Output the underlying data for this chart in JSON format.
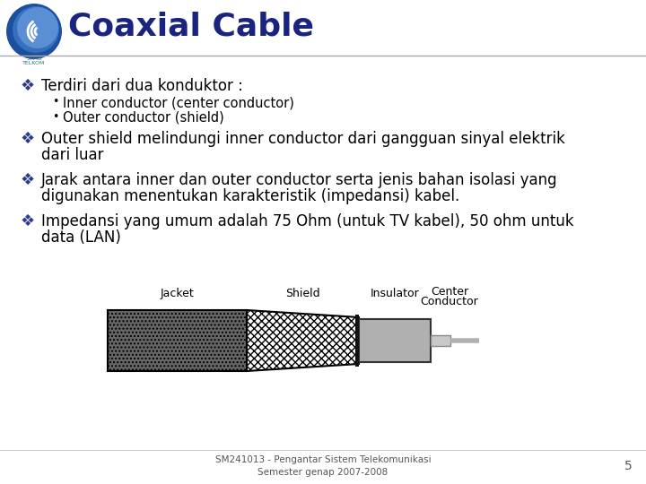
{
  "title": "Coaxial Cable",
  "title_color": "#1a237e",
  "bg_color": "#ffffff",
  "bullet_sym": "❖",
  "bullet1": "Terdiri dari dua konduktor :",
  "sub1": "Inner conductor (center conductor)",
  "sub2": "Outer conductor (shield)",
  "bullet2_l1": "Outer shield melindungi inner conductor dari gangguan sinyal elektrik",
  "bullet2_l2": "dari luar",
  "bullet3_l1": "Jarak antara inner dan outer conductor serta jenis bahan isolasi yang",
  "bullet3_l2": "digunakan menentukan karakteristik (impedansi) kabel.",
  "bullet4_l1": "Impedansi yang umum adalah 75 Ohm (untuk TV kabel), 50 ohm untuk",
  "bullet4_l2": "data (LAN)",
  "footer": "SM241013 - Pengantar Sistem Telekomunikasi\nSemester genap 2007-2008",
  "page_num": "5",
  "label_jacket": "Jacket",
  "label_shield": "Shield",
  "label_insulator": "Insulator",
  "label_center_l1": "Center",
  "label_center_l2": "Conductor",
  "text_color": "#000000",
  "bullet_color": "#2e3a8a",
  "footer_color": "#555555",
  "title_fs": 26,
  "body_fs": 12,
  "sub_fs": 10.5,
  "label_fs": 9,
  "footer_fs": 7.5,
  "jacket_color": "#666666",
  "jacket_dot_color": "#888888",
  "shield_hatch_color": "#000000",
  "insulator_color": "#b0b0b0",
  "center_color": "#c8c8c8",
  "wire_color": "#b0b0b0"
}
